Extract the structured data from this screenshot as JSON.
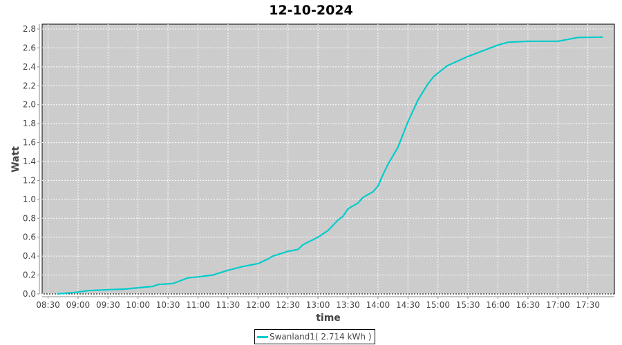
{
  "chart_data": {
    "type": "line",
    "title": "12-10-2024",
    "xlabel": "time",
    "ylabel": "Watt",
    "xlim": [
      "08:20",
      "18:05"
    ],
    "ylim": [
      0,
      2.85
    ],
    "x_ticks": [
      "08:30",
      "09:00",
      "09:30",
      "10:00",
      "10:30",
      "11:00",
      "11:30",
      "12:00",
      "12:30",
      "13:00",
      "13:30",
      "14:00",
      "14:30",
      "15:00",
      "15:30",
      "16:00",
      "16:30",
      "17:00",
      "17:30"
    ],
    "y_ticks": [
      "0.0",
      "0.2",
      "0.4",
      "0.6",
      "0.8",
      "1.0",
      "1.2",
      "1.4",
      "1.6",
      "1.8",
      "2.0",
      "2.2",
      "2.4",
      "2.6",
      "2.8"
    ],
    "grid": true,
    "legend_position": "bottom",
    "colors": {
      "plot_background": "#cccccc",
      "grid": "#ffffff",
      "series": "#00cccc"
    },
    "series": [
      {
        "name": "Swanland1( 2.714 kWh )",
        "x": [
          "08:39",
          "08:45",
          "09:00",
          "09:10",
          "09:30",
          "09:45",
          "10:00",
          "10:15",
          "10:20",
          "10:35",
          "10:45",
          "10:50",
          "11:00",
          "11:15",
          "11:30",
          "11:45",
          "12:00",
          "12:10",
          "12:15",
          "12:30",
          "12:40",
          "12:45",
          "13:00",
          "13:10",
          "13:20",
          "13:25",
          "13:30",
          "13:40",
          "13:45",
          "13:55",
          "14:00",
          "14:05",
          "14:10",
          "14:20",
          "14:30",
          "14:40",
          "14:50",
          "14:56",
          "15:09",
          "15:30",
          "16:00",
          "16:10",
          "16:30",
          "17:00",
          "17:10",
          "17:20",
          "17:45"
        ],
        "y": [
          0.0,
          0.005,
          0.02,
          0.035,
          0.045,
          0.05,
          0.065,
          0.08,
          0.1,
          0.11,
          0.15,
          0.17,
          0.18,
          0.2,
          0.25,
          0.29,
          0.32,
          0.37,
          0.4,
          0.45,
          0.47,
          0.52,
          0.6,
          0.67,
          0.78,
          0.82,
          0.9,
          0.96,
          1.02,
          1.08,
          1.14,
          1.26,
          1.37,
          1.55,
          1.82,
          2.05,
          2.22,
          2.3,
          2.41,
          2.51,
          2.63,
          2.66,
          2.67,
          2.67,
          2.69,
          2.71,
          2.714
        ]
      }
    ]
  }
}
